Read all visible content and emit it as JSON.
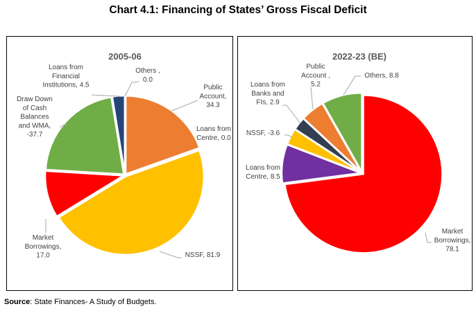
{
  "title": "Chart 4.1: Financing of States’ Gross Fiscal Deficit",
  "source": {
    "label": "Source",
    "text": ": State Finances- A Study of Budgets."
  },
  "chart_data": [
    {
      "type": "pie",
      "title": "2005-06",
      "slices": [
        {
          "name": "Public Account",
          "value": 34.3,
          "color": "#ED7D31",
          "lines": [
            "Public",
            "Account,",
            "34.3"
          ]
        },
        {
          "name": "Loans from Centre",
          "value": 0.0,
          "color": "#A5A5A5",
          "lines": [
            "Loans from",
            "Centre, 0.0"
          ]
        },
        {
          "name": "NSSF",
          "value": 81.9,
          "color": "#FFC000",
          "lines": [
            "NSSF, 81.9"
          ]
        },
        {
          "name": "Market Borrowings",
          "value": 17.0,
          "color": "#FF0000",
          "lines": [
            "Market",
            "Borrowings,",
            "17.0"
          ]
        },
        {
          "name": "Draw Down of Cash Balances and WMA",
          "value": -37.7,
          "color": "#70AD47",
          "lines": [
            "Draw Down",
            "of Cash",
            "Balances",
            "and WMA,",
            "-37.7"
          ]
        },
        {
          "name": "Loans from Financial Institutions",
          "value": 4.5,
          "color": "#264478",
          "lines": [
            "Loans from",
            "Financial",
            "Institutions, 4.5"
          ]
        },
        {
          "name": "Others",
          "value": 0.0,
          "color": "#7F7F7F",
          "lines": [
            "Others   ,",
            "0.0"
          ]
        }
      ]
    },
    {
      "type": "pie",
      "title": "2022-23 (BE)",
      "slices": [
        {
          "name": "Market Borrowings",
          "value": 78.1,
          "color": "#FF0000",
          "lines": [
            "Market",
            "Borrowings,",
            "78.1"
          ]
        },
        {
          "name": "Loans from Centre",
          "value": 8.5,
          "color": "#7030A0",
          "lines": [
            "Loans from",
            "Centre, 8.5"
          ]
        },
        {
          "name": "NSSF",
          "value": -3.6,
          "color": "#FFC000",
          "lines": [
            "NSSF, -3.6"
          ]
        },
        {
          "name": "Loans from Banks and FIs",
          "value": 2.9,
          "color": "#333F50",
          "lines": [
            "Loans from",
            "Banks and",
            "FIs, 2.9"
          ]
        },
        {
          "name": "Public Account",
          "value": 5.2,
          "color": "#ED7D31",
          "lines": [
            "Public",
            "Account ,",
            "5.2"
          ]
        },
        {
          "name": "Others",
          "value": 8.8,
          "color": "#70AD47",
          "lines": [
            "Others, 8.8"
          ]
        }
      ]
    }
  ]
}
